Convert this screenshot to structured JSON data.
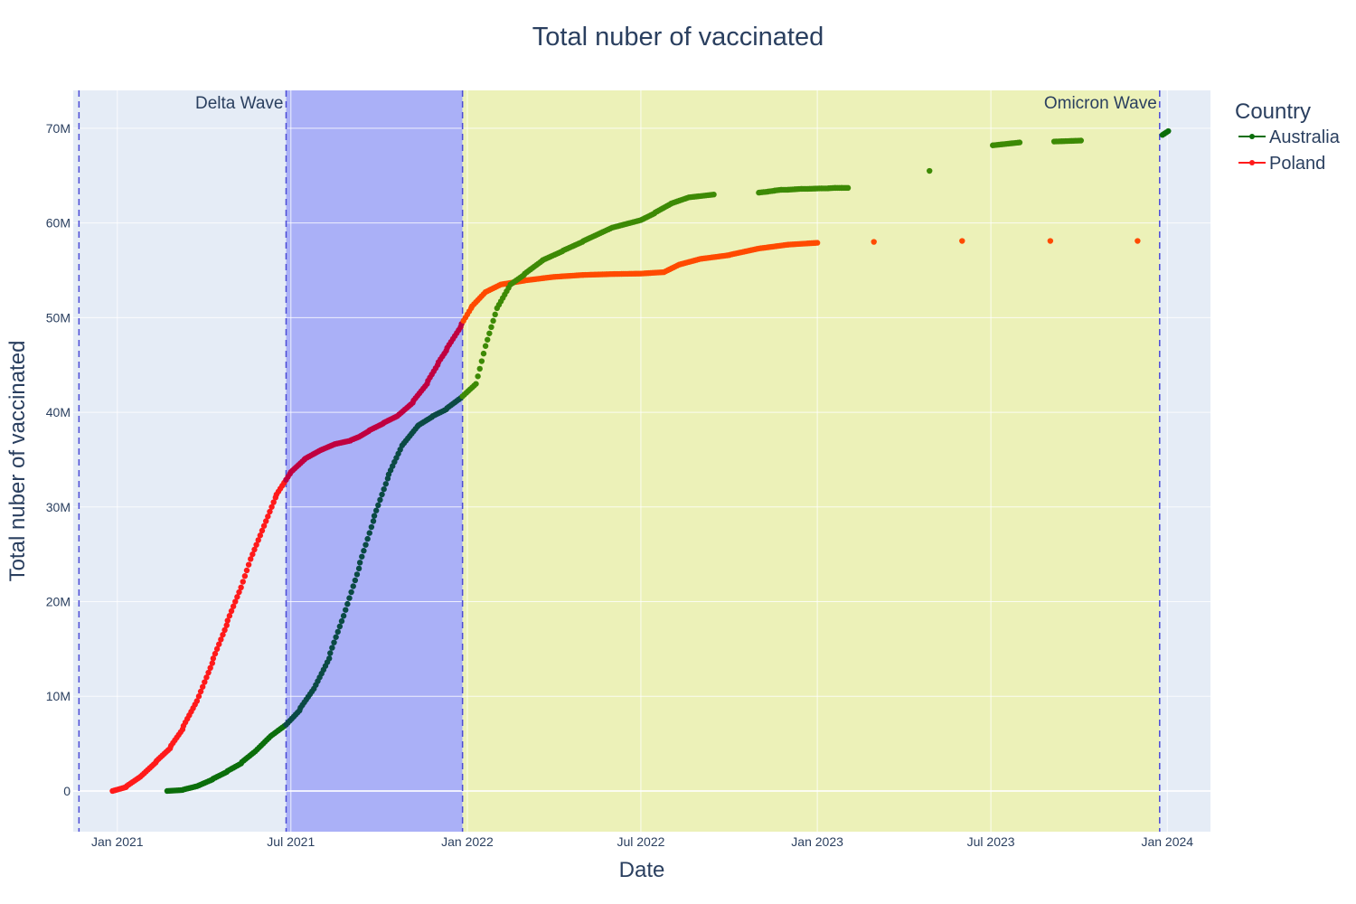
{
  "chart_data": {
    "type": "scatter",
    "title": "Total nuber of vaccinated",
    "xlabel": "Date",
    "ylabel": "Total nuber of vaccinated",
    "x_range": [
      "2020-11-16",
      "2024-02-15"
    ],
    "ylim": [
      -4300000,
      74000000
    ],
    "x_ticks": [
      {
        "date": "2021-01-01",
        "label": "Jan 2021"
      },
      {
        "date": "2021-07-01",
        "label": "Jul 2021"
      },
      {
        "date": "2022-01-01",
        "label": "Jan 2022"
      },
      {
        "date": "2022-07-01",
        "label": "Jul 2022"
      },
      {
        "date": "2023-01-01",
        "label": "Jan 2023"
      },
      {
        "date": "2023-07-01",
        "label": "Jul 2023"
      },
      {
        "date": "2024-01-01",
        "label": "Jan 2024"
      }
    ],
    "y_ticks": [
      {
        "value": 0,
        "label": "0"
      },
      {
        "value": 10000000,
        "label": "10M"
      },
      {
        "value": 20000000,
        "label": "20M"
      },
      {
        "value": 30000000,
        "label": "30M"
      },
      {
        "value": 40000000,
        "label": "40M"
      },
      {
        "value": 50000000,
        "label": "50M"
      },
      {
        "value": 60000000,
        "label": "60M"
      },
      {
        "value": 70000000,
        "label": "70M"
      }
    ],
    "grid": true,
    "legend": {
      "title": "Country",
      "position": "right",
      "entries": [
        "Australia",
        "Poland"
      ]
    },
    "shaded_regions": [
      {
        "label": "Delta Wave",
        "start": "2021-06-26",
        "end": "2021-12-27",
        "color": "#aab0f7"
      },
      {
        "label": "Omicron Wave",
        "start": "2021-12-27",
        "end": "2023-12-24",
        "color": "#ecf1b8"
      }
    ],
    "vlines": [
      "2020-11-22",
      "2021-06-26",
      "2021-12-27",
      "2023-12-24"
    ],
    "series": [
      {
        "name": "Poland",
        "color": "#ff1a1a",
        "points": [
          [
            "2020-12-27",
            0
          ],
          [
            "2021-01-10",
            400000
          ],
          [
            "2021-01-25",
            1500000
          ],
          [
            "2021-02-10",
            3000000
          ],
          [
            "2021-02-25",
            4500000
          ],
          [
            "2021-03-10",
            6500000
          ],
          [
            "2021-03-25",
            9500000
          ],
          [
            "2021-04-10",
            13500000
          ],
          [
            "2021-04-25",
            17500000
          ],
          [
            "2021-05-10",
            21500000
          ],
          [
            "2021-05-20",
            24500000
          ],
          [
            "2021-06-01",
            27500000
          ],
          [
            "2021-06-15",
            31000000
          ],
          [
            "2021-06-30",
            33500000
          ],
          [
            "2021-07-15",
            35000000
          ],
          [
            "2021-08-01",
            36000000
          ],
          [
            "2021-08-15",
            36600000
          ],
          [
            "2021-09-01",
            37000000
          ],
          [
            "2021-09-10",
            37400000
          ],
          [
            "2021-09-20",
            38000000
          ],
          [
            "2021-10-05",
            38800000
          ],
          [
            "2021-10-20",
            39600000
          ],
          [
            "2021-11-05",
            41000000
          ],
          [
            "2021-11-20",
            43000000
          ],
          [
            "2021-12-01",
            45000000
          ],
          [
            "2021-12-10",
            46500000
          ],
          [
            "2021-12-25",
            49000000
          ],
          [
            "2022-01-05",
            51000000
          ],
          [
            "2022-01-20",
            52700000
          ],
          [
            "2022-02-05",
            53500000
          ],
          [
            "2022-03-01",
            53900000
          ],
          [
            "2022-04-01",
            54300000
          ],
          [
            "2022-05-01",
            54500000
          ],
          [
            "2022-06-01",
            54600000
          ],
          [
            "2022-07-01",
            54650000
          ],
          [
            "2022-07-25",
            54800000
          ],
          [
            "2022-08-10",
            55600000
          ],
          [
            "2022-09-01",
            56200000
          ],
          [
            "2022-10-01",
            56600000
          ],
          [
            "2022-11-01",
            57300000
          ],
          [
            "2022-12-01",
            57700000
          ],
          [
            "2023-01-01",
            57900000
          ],
          [
            "2023-03-01",
            58000000
          ],
          [
            "2023-06-01",
            58100000
          ],
          [
            "2023-09-01",
            58100000
          ],
          [
            "2023-12-01",
            58100000
          ]
        ]
      },
      {
        "name": "Australia",
        "color": "#0b7a0b",
        "points": [
          [
            "2021-02-22",
            0
          ],
          [
            "2021-03-10",
            100000
          ],
          [
            "2021-03-25",
            500000
          ],
          [
            "2021-04-10",
            1200000
          ],
          [
            "2021-04-25",
            2000000
          ],
          [
            "2021-05-10",
            2900000
          ],
          [
            "2021-05-25",
            4200000
          ],
          [
            "2021-06-10",
            5800000
          ],
          [
            "2021-06-26",
            7000000
          ],
          [
            "2021-07-10",
            8500000
          ],
          [
            "2021-07-25",
            10800000
          ],
          [
            "2021-08-10",
            14000000
          ],
          [
            "2021-08-25",
            18500000
          ],
          [
            "2021-09-10",
            23500000
          ],
          [
            "2021-09-25",
            28500000
          ],
          [
            "2021-10-10",
            33000000
          ],
          [
            "2021-10-25",
            36500000
          ],
          [
            "2021-11-10",
            38500000
          ],
          [
            "2021-11-25",
            39500000
          ],
          [
            "2021-12-10",
            40300000
          ],
          [
            "2021-12-25",
            41500000
          ],
          [
            "2022-01-10",
            43000000
          ],
          [
            "2022-01-20",
            47000000
          ],
          [
            "2022-02-01",
            51000000
          ],
          [
            "2022-02-15",
            53500000
          ],
          [
            "2022-03-01",
            54500000
          ],
          [
            "2022-03-20",
            56000000
          ],
          [
            "2022-04-10",
            57000000
          ],
          [
            "2022-05-01",
            58000000
          ],
          [
            "2022-06-01",
            59500000
          ],
          [
            "2022-07-01",
            60300000
          ],
          [
            "2022-07-15",
            61000000
          ],
          [
            "2022-08-01",
            62000000
          ],
          [
            "2022-08-20",
            62700000
          ],
          [
            "2022-09-15",
            63000000
          ],
          [
            "2022-11-01",
            63200000
          ],
          [
            "2022-11-10",
            63300000
          ],
          [
            "2022-11-17",
            63400000
          ],
          [
            "2022-11-24",
            63500000
          ],
          [
            "2022-12-01",
            63500000
          ],
          [
            "2022-12-08",
            63550000
          ],
          [
            "2022-12-15",
            63600000
          ],
          [
            "2022-12-22",
            63600000
          ],
          [
            "2023-01-05",
            63650000
          ],
          [
            "2023-01-12",
            63650000
          ],
          [
            "2023-01-19",
            63700000
          ],
          [
            "2023-01-26",
            63700000
          ],
          [
            "2023-02-02",
            63700000
          ],
          [
            "2023-04-28",
            65500000
          ],
          [
            "2023-07-03",
            68200000
          ],
          [
            "2023-07-31",
            68500000
          ],
          [
            "2023-09-05",
            68600000
          ],
          [
            "2023-10-03",
            68700000
          ],
          [
            "2023-12-27",
            69300000
          ],
          [
            "2024-01-02",
            69700000
          ]
        ]
      }
    ]
  }
}
